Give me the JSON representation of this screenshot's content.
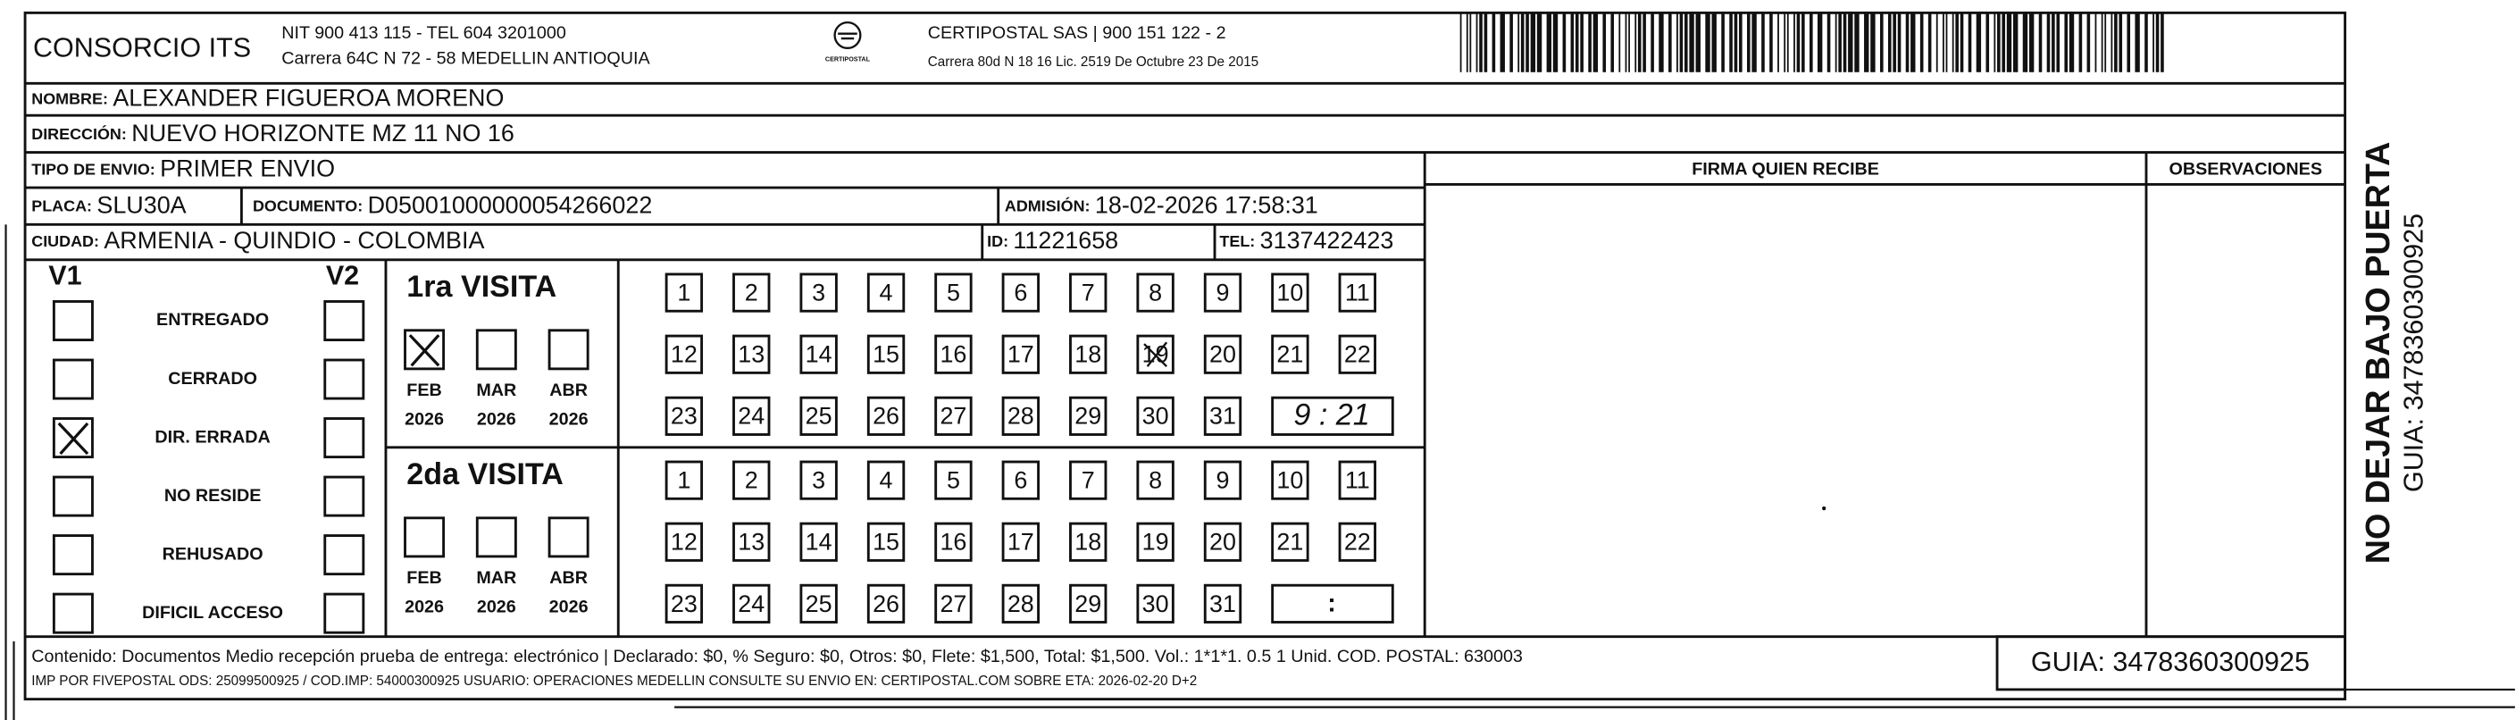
{
  "header": {
    "company": "CONSORCIO ITS",
    "company_info": [
      "NIT 900 413 115 - TEL 604 3201000",
      "Carrera 64C N 72 - 58 MEDELLIN ANTIOQUIA"
    ],
    "courier_logo": "CERTIPOSTAL",
    "courier_info": [
      "CERTIPOSTAL SAS | 900 151 122 - 2",
      "Carrera 80d N 18 16  Lic. 2519 De Octubre 23 De 2015"
    ]
  },
  "recipient": {
    "nombre": {
      "label": "NOMBRE:",
      "value": "ALEXANDER FIGUEROA MORENO"
    },
    "direccion": {
      "label": "DIRECCIÓN:",
      "value": "NUEVO HORIZONTE MZ 11 NO 16"
    },
    "tipo_envio": {
      "label": "TIPO DE ENVIO:",
      "value": "PRIMER ENVIO"
    },
    "placa": {
      "label": "PLACA:",
      "value": "SLU30A"
    },
    "documento": {
      "label": "DOCUMENTO:",
      "value": "D05001000000054266022"
    },
    "admision": {
      "label": "ADMISIÓN:",
      "value": "18-02-2026 17:58:31"
    },
    "ciudad": {
      "label": "CIUDAD:",
      "value": "ARMENIA - QUINDIO - COLOMBIA"
    },
    "id": {
      "label": "ID:",
      "value": "11221658"
    },
    "tel": {
      "label": "TEL:",
      "value": "3137422423"
    }
  },
  "signature": {
    "firma_label": "FIRMA QUIEN RECIBE",
    "observaciones_label": "OBSERVACIONES"
  },
  "attempts": {
    "v1_label": "V1",
    "v2_label": "V2",
    "reasons": [
      "ENTREGADO",
      "CERRADO",
      "DIR. ERRADA",
      "NO RESIDE",
      "REHUSADO",
      "DIFICIL ACCESO"
    ],
    "v1_checked": [
      false,
      false,
      true,
      false,
      false,
      false
    ],
    "v2_checked": [
      false,
      false,
      false,
      false,
      false,
      false
    ]
  },
  "visits": [
    {
      "title": "1ra VISITA",
      "months": [
        {
          "month": "FEB",
          "year": 2026,
          "checked": true
        },
        {
          "month": "MAR",
          "year": 2026,
          "checked": false
        },
        {
          "month": "ABR",
          "year": 2026,
          "checked": false
        }
      ],
      "days": [
        1,
        2,
        3,
        4,
        5,
        6,
        7,
        8,
        9,
        10,
        11,
        12,
        13,
        14,
        15,
        16,
        17,
        18,
        19,
        20,
        21,
        22,
        23,
        24,
        25,
        26,
        27,
        28,
        29,
        30,
        31
      ],
      "marked_days": [
        19
      ],
      "time": "9 : 21"
    },
    {
      "title": "2da VISITA",
      "months": [
        {
          "month": "FEB",
          "year": 2026,
          "checked": false
        },
        {
          "month": "MAR",
          "year": 2026,
          "checked": false
        },
        {
          "month": "ABR",
          "year": 2026,
          "checked": false
        }
      ],
      "days": [
        1,
        2,
        3,
        4,
        5,
        6,
        7,
        8,
        9,
        10,
        11,
        12,
        13,
        14,
        15,
        16,
        17,
        18,
        19,
        20,
        21,
        22,
        23,
        24,
        25,
        26,
        27,
        28,
        29,
        30,
        31
      ],
      "marked_days": [],
      "time": ":"
    }
  ],
  "footer": {
    "content": "Contenido: Documentos Medio recepción prueba de entrega: electrónico | Declarado: $0, % Seguro: $0, Otros: $0, Flete: $1,500, Total: $1,500. Vol.: 1*1*1. 0.5  1 Unid. COD. POSTAL: 630003",
    "print_info": "IMP POR FIVEPOSTAL ODS: 25099500925 / COD.IMP: 54000300925 USUARIO: OPERACIONES MEDELLIN CONSULTE SU ENVIO EN: CERTIPOSTAL.COM SOBRE ETA: 2026-02-20 D+2",
    "guia": "GUIA: 3478360300925"
  },
  "side": {
    "warning": "NO DEJAR BAJO PUERTA",
    "guia": "GUIA: 3478360300925"
  }
}
